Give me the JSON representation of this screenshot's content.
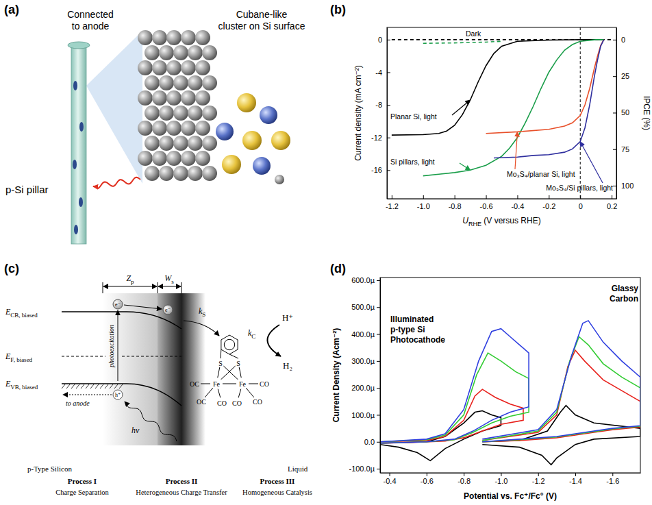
{
  "panel_labels": [
    "(a)",
    "(b)",
    "(c)",
    "(d)"
  ],
  "panel_a": {
    "anode_label": [
      "Connected",
      "to anode"
    ],
    "cluster_label": [
      "Cubane-like",
      "cluster on Si surface"
    ],
    "pillar_label": "p-Si pillar"
  },
  "chart_data": [
    {
      "type": "line",
      "x_label": {
        "text": "U",
        "sub": "RHE",
        "rest": " (V versus RHE)"
      },
      "y_label": "Current density (mA cm⁻²)",
      "y2_label": "IPCE (%)",
      "xlim": [
        -1.23,
        0.23
      ],
      "xticks": [
        -1.2,
        {
          "value": -1,
          "label": "-1.0"
        },
        -0.8,
        -0.6,
        -0.4,
        -0.2,
        0,
        0.2
      ],
      "ylim": [
        -19.5,
        1.5
      ],
      "yticks": [
        0,
        -4,
        -8,
        -12,
        -16
      ],
      "y2lim": [
        108.9,
        -8.4
      ],
      "y2ticks": [
        0,
        25,
        50,
        75,
        100
      ],
      "vlines": [
        0
      ],
      "series": [
        {
          "name": "Dark",
          "color": "#000000",
          "line_style": "dashed",
          "x": [
            -1.2,
            0.2
          ],
          "values": [
            0,
            0
          ]
        },
        {
          "color": "#1a9e4a",
          "line_style": "dashed",
          "x": [
            -1.0,
            -0.8,
            -0.6,
            -0.5
          ],
          "values": [
            -0.45,
            -0.4,
            -0.3,
            -0.2
          ]
        },
        {
          "name": "Planar Si, light",
          "color": "#000000",
          "line_style": "solid",
          "x": [
            -1.2,
            -1.0,
            -0.9,
            -0.85,
            -0.8,
            -0.75,
            -0.7,
            -0.65,
            -0.6,
            -0.55,
            -0.5,
            -0.4,
            -0.2,
            0,
            0.15
          ],
          "values": [
            -11.7,
            -11.65,
            -11.5,
            -11.2,
            -10.5,
            -9.2,
            -7.4,
            -5.2,
            -3.2,
            -1.7,
            -0.8,
            -0.2,
            -0.05,
            0,
            0
          ]
        },
        {
          "name": "Si pillars, light",
          "color": "#1a9e4a",
          "line_style": "solid",
          "x": [
            -1.0,
            -0.9,
            -0.8,
            -0.7,
            -0.6,
            -0.5,
            -0.45,
            -0.4,
            -0.35,
            -0.3,
            -0.25,
            -0.2,
            -0.15,
            -0.1,
            -0.05,
            0,
            0.1,
            0.15
          ],
          "values": [
            -16.7,
            -16.5,
            -16.3,
            -16,
            -15.4,
            -14.3,
            -13.3,
            -12,
            -10.2,
            -8.2,
            -6,
            -4,
            -2.5,
            -1.3,
            -0.6,
            -0.2,
            0,
            0
          ]
        },
        {
          "name": "Mo₃S₄/planar Si, light",
          "color": "#e8502a",
          "line_style": "solid",
          "x": [
            -0.6,
            -0.4,
            -0.2,
            -0.1,
            -0.05,
            0,
            0.03,
            0.06,
            0.09,
            0.11,
            0.13,
            0.15
          ],
          "values": [
            -11.5,
            -11.3,
            -11,
            -10.6,
            -10.2,
            -9.3,
            -8,
            -6,
            -3.5,
            -2,
            -0.7,
            0
          ]
        },
        {
          "name": "Mo₃S₄/Si pillars, light",
          "color": "#2e2e9e",
          "line_style": "solid",
          "x": [
            -0.55,
            -0.4,
            -0.3,
            -0.2,
            -0.1,
            -0.05,
            0,
            0.03,
            0.06,
            0.09,
            0.11,
            0.13,
            0.15
          ],
          "values": [
            -14.5,
            -14.4,
            -14.2,
            -14.1,
            -13.8,
            -13.4,
            -12.5,
            -10.8,
            -8,
            -4.5,
            -2.5,
            -0.8,
            0
          ]
        }
      ]
    },
    {
      "type": "line",
      "x_label": "Potential vs. Fc⁺/Fc° (V)",
      "y_label": "Current Density (Acm⁻²)",
      "xlim": [
        -0.35,
        -1.75
      ],
      "xticks": [
        -0.4,
        -0.6,
        -0.8,
        {
          "value": -1,
          "label": "-1.0"
        },
        -1.2,
        -1.4,
        -1.6
      ],
      "ylim": [
        -0.000115,
        0.00061
      ],
      "yticks": [
        {
          "value": -0.0001,
          "label": "-100.0µ"
        },
        {
          "value": 0,
          "label": "0.0"
        },
        {
          "value": 0.0001,
          "label": "100.0µ"
        },
        {
          "value": 0.0002,
          "label": "200.0µ"
        },
        {
          "value": 0.0003,
          "label": "300.0µ"
        },
        {
          "value": 0.0004,
          "label": "400.0µ"
        },
        {
          "value": 0.0005,
          "label": "500.0µ"
        },
        {
          "value": 0.0006,
          "label": "600.0µ"
        }
      ],
      "annotations": [
        {
          "text": [
            "Illuminated",
            "p-type Si",
            "Photocathode"
          ]
        },
        {
          "text": [
            "Glassy",
            "Carbon"
          ]
        }
      ],
      "series": [
        {
          "color": "#000000",
          "x": [
            -0.35,
            -0.5,
            -0.6,
            -0.7,
            -0.8,
            -0.86,
            -0.9,
            -0.95,
            -1.0,
            -1.0,
            -0.9,
            -0.8,
            -0.7,
            -0.62,
            -0.55,
            -0.45,
            -0.35
          ],
          "values": [
            -5e-06,
            -2e-06,
            0,
            2e-05,
            7e-05,
            0.00011,
            0.000115,
            0.0001,
            9e-05,
            6e-05,
            4e-05,
            1e-05,
            -2.5e-05,
            -7e-05,
            -4e-05,
            -2e-05,
            -1e-05
          ]
        },
        {
          "color": "#e8211c",
          "x": [
            -0.35,
            -0.6,
            -0.7,
            -0.8,
            -0.86,
            -0.9,
            -0.97,
            -1.05,
            -1.12,
            -1.12,
            -1.0,
            -0.9,
            -0.8,
            -0.7,
            -0.5,
            -0.35
          ],
          "values": [
            0,
            5e-06,
            2e-05,
            8e-05,
            0.00017,
            0.000195,
            0.000165,
            0.00014,
            0.000125,
            8e-05,
            6.5e-05,
            4e-05,
            1.5e-05,
            3e-06,
            -3e-06,
            -5e-06
          ]
        },
        {
          "color": "#33cc33",
          "x": [
            -0.35,
            -0.6,
            -0.7,
            -0.8,
            -0.87,
            -0.93,
            -1.0,
            -1.08,
            -1.15,
            -1.15,
            -1.05,
            -0.95,
            -0.85,
            -0.75,
            -0.6,
            -0.35
          ],
          "values": [
            0,
            8e-06,
            2.5e-05,
            0.0001,
            0.00025,
            0.00033,
            0.0003,
            0.00026,
            0.000235,
            0.00011,
            9.5e-05,
            7e-05,
            3.5e-05,
            8e-06,
            0,
            -5e-06
          ]
        },
        {
          "color": "#3040e0",
          "x": [
            -0.35,
            -0.6,
            -0.7,
            -0.8,
            -0.88,
            -0.95,
            -1.0,
            -1.05,
            -1.1,
            -1.15,
            -1.15,
            -1.05,
            -0.95,
            -0.85,
            -0.75,
            -0.6,
            -0.35
          ],
          "values": [
            0,
            1e-05,
            3e-05,
            0.00012,
            0.0003,
            0.00041,
            0.00042,
            0.00039,
            0.00036,
            0.00033,
            0.00013,
            0.00011,
            8e-05,
            4e-05,
            1e-05,
            0,
            -5e-06
          ]
        },
        {
          "color": "#000000",
          "x": [
            -0.9,
            -1.1,
            -1.25,
            -1.32,
            -1.35,
            -1.4,
            -1.5,
            -1.75,
            -1.75,
            -1.5,
            -1.4,
            -1.3,
            -1.27,
            -1.22,
            -1.1,
            -0.9
          ],
          "values": [
            0,
            5e-06,
            4e-05,
            0.00011,
            0.000135,
            0.0001,
            7e-05,
            5e-05,
            2e-05,
            1e-05,
            -1e-05,
            -6e-05,
            -8.5e-05,
            -5e-05,
            -2e-05,
            -1e-05
          ]
        },
        {
          "color": "#e8211c",
          "x": [
            -0.9,
            -1.2,
            -1.3,
            -1.36,
            -1.4,
            -1.45,
            -1.55,
            -1.65,
            -1.75,
            -1.75,
            -1.6,
            -1.5,
            -1.4,
            -1.3,
            -1.1,
            -0.9
          ],
          "values": [
            5e-06,
            3.5e-05,
            0.0001,
            0.00028,
            0.00034,
            0.0003,
            0.00023,
            0.00019,
            0.00015,
            5.5e-05,
            4.5e-05,
            3.5e-05,
            2.5e-05,
            1.5e-05,
            5e-06,
            0
          ]
        },
        {
          "color": "#33cc33",
          "x": [
            -0.9,
            -1.2,
            -1.3,
            -1.37,
            -1.42,
            -1.47,
            -1.55,
            -1.65,
            -1.75,
            -1.75,
            -1.6,
            -1.5,
            -1.4,
            -1.3,
            -1.1,
            -0.9
          ],
          "values": [
            5e-06,
            4e-05,
            0.00011,
            0.0003,
            0.00039,
            0.00036,
            0.00029,
            0.00024,
            0.0002,
            5.8e-05,
            4.8e-05,
            3.8e-05,
            2.8e-05,
            1.8e-05,
            8e-06,
            0
          ]
        },
        {
          "color": "#3040e0",
          "x": [
            -0.9,
            -1.2,
            -1.3,
            -1.38,
            -1.44,
            -1.47,
            -1.55,
            -1.65,
            -1.75,
            -1.75,
            -1.6,
            -1.5,
            -1.4,
            -1.3,
            -1.1,
            -0.9
          ],
          "values": [
            1e-05,
            4.5e-05,
            0.00012,
            0.00032,
            0.00044,
            0.00045,
            0.00037,
            0.0003,
            0.00024,
            6e-05,
            5e-05,
            4e-05,
            3e-05,
            2e-05,
            1e-05,
            0
          ]
        }
      ]
    }
  ],
  "panel_c": {
    "levels": [
      {
        "text": "E",
        "sub": "CB, biased"
      },
      {
        "text": "E",
        "sub": "F, biased"
      },
      {
        "text": "E",
        "sub": "VB, biased"
      }
    ],
    "zp": {
      "text": "Z",
      "sub": "p"
    },
    "ws": {
      "text": "W",
      "sub": "s"
    },
    "electron": "e⁻",
    "hole": "h⁺",
    "photoexcitation": "photoexcitation",
    "to_anode": "to anode",
    "light": "hν",
    "ks": {
      "text": "k",
      "sub": "S"
    },
    "kc": {
      "text": "k",
      "sub": "C"
    },
    "proton": "H⁺",
    "hydrogen": "H₂",
    "molecule": [
      "S",
      "S",
      "Fe",
      "Fe",
      "OC",
      "OC",
      "CO",
      "CO",
      "CO",
      "CO"
    ],
    "regions": [
      "p-Type Silicon",
      "Liquid"
    ],
    "processes": [
      {
        "name": "Process I",
        "description": "Charge Separation"
      },
      {
        "name": "Process II",
        "description": "Heterogeneous Charge Transfer"
      },
      {
        "name": "Process III",
        "description": "Homogeneous Catalysis"
      }
    ]
  }
}
